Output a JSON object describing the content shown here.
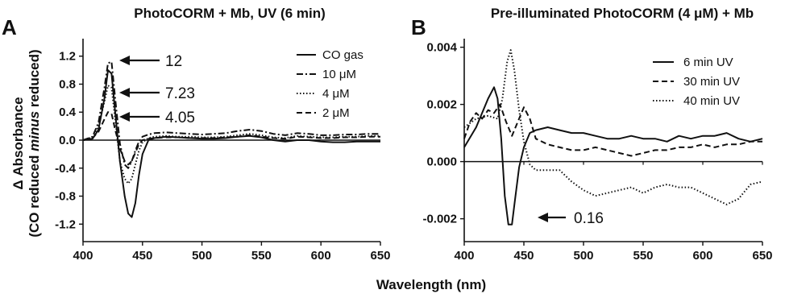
{
  "x_axis_title": "Wavelength (nm)",
  "chart_data": [
    {
      "panel": "A",
      "type": "line",
      "title": "PhotoCORM + Mb, UV (6 min)",
      "ylabel_line1": "Δ Absorbance",
      "ylabel_line2_pre": "(CO reduced ",
      "ylabel_line2_em": "minus",
      "ylabel_line2_post": " reduced)",
      "xlim": [
        400,
        650
      ],
      "ylim": [
        -1.45,
        1.45
      ],
      "xticks": [
        400,
        450,
        500,
        550,
        600,
        650
      ],
      "yticks": [
        1.2,
        0.8,
        0.4,
        0.0,
        -0.4,
        -0.8,
        -1.2
      ],
      "ytick_labels": [
        "1.2",
        "0.8",
        "0.4",
        "0.0",
        "-0.4",
        "-0.8",
        "-1.2"
      ],
      "legend_position": "top-right",
      "series": [
        {
          "name": "CO gas",
          "style": "solid",
          "x": [
            400,
            408,
            413,
            418,
            421,
            424,
            427,
            431,
            435,
            438,
            441,
            444,
            447,
            450,
            455,
            460,
            470,
            480,
            490,
            500,
            510,
            520,
            530,
            540,
            550,
            560,
            570,
            580,
            590,
            600,
            610,
            620,
            630,
            640,
            650
          ],
          "y": [
            0,
            0.02,
            0.15,
            0.6,
            1.0,
            0.95,
            0.4,
            -0.3,
            -0.8,
            -1.05,
            -1.1,
            -0.9,
            -0.5,
            -0.2,
            0.0,
            0.03,
            0.05,
            0.04,
            0.03,
            0.02,
            0.02,
            0.03,
            0.05,
            0.06,
            0.04,
            0.0,
            -0.02,
            0.0,
            0.0,
            -0.02,
            -0.03,
            -0.03,
            -0.02,
            -0.02,
            -0.02
          ]
        },
        {
          "name": "10 μM",
          "style": "dashdot",
          "x": [
            400,
            408,
            413,
            418,
            421,
            424,
            427,
            431,
            435,
            438,
            441,
            444,
            447,
            450,
            455,
            460,
            470,
            480,
            490,
            500,
            510,
            520,
            530,
            540,
            550,
            560,
            570,
            580,
            590,
            600,
            610,
            620,
            630,
            640,
            650
          ],
          "y": [
            0,
            0.05,
            0.25,
            0.75,
            1.1,
            1.12,
            0.6,
            -0.05,
            -0.35,
            -0.4,
            -0.3,
            -0.15,
            -0.02,
            0.05,
            0.08,
            0.1,
            0.11,
            0.1,
            0.09,
            0.08,
            0.09,
            0.1,
            0.13,
            0.15,
            0.13,
            0.09,
            0.07,
            0.1,
            0.09,
            0.07,
            0.07,
            0.08,
            0.08,
            0.09,
            0.09
          ]
        },
        {
          "name": "4 μM",
          "style": "dotted",
          "x": [
            400,
            408,
            413,
            418,
            421,
            424,
            427,
            431,
            435,
            438,
            441,
            444,
            447,
            450,
            455,
            460,
            470,
            480,
            490,
            500,
            510,
            520,
            530,
            540,
            550,
            560,
            570,
            580,
            590,
            600,
            610,
            620,
            630,
            640,
            650
          ],
          "y": [
            0,
            0.04,
            0.2,
            0.55,
            0.78,
            0.75,
            0.3,
            -0.3,
            -0.55,
            -0.62,
            -0.55,
            -0.35,
            -0.15,
            -0.03,
            0.03,
            0.05,
            0.06,
            0.05,
            0.05,
            0.04,
            0.04,
            0.05,
            0.07,
            0.09,
            0.07,
            0.04,
            0.03,
            0.06,
            0.05,
            0.04,
            0.04,
            0.05,
            0.05,
            0.06,
            0.06
          ]
        },
        {
          "name": "2 μM",
          "style": "dashed",
          "x": [
            400,
            408,
            413,
            418,
            421,
            424,
            427,
            431,
            435,
            438,
            441,
            444,
            447,
            450,
            455,
            460,
            470,
            480,
            490,
            500,
            510,
            520,
            530,
            540,
            550,
            560,
            570,
            580,
            590,
            600,
            610,
            620,
            630,
            640,
            650
          ],
          "y": [
            0,
            0.03,
            0.12,
            0.3,
            0.4,
            0.38,
            0.15,
            -0.12,
            -0.3,
            -0.35,
            -0.3,
            -0.18,
            -0.06,
            0.0,
            0.02,
            0.03,
            0.04,
            0.04,
            0.03,
            0.03,
            0.03,
            0.04,
            0.05,
            0.07,
            0.05,
            0.03,
            0.02,
            0.05,
            0.04,
            0.03,
            0.03,
            0.04,
            0.04,
            0.05,
            0.05
          ]
        }
      ],
      "annotations": [
        {
          "text": "12",
          "x": 423,
          "y": 1.12
        },
        {
          "text": "7.23",
          "x": 423,
          "y": 0.8
        },
        {
          "text": "4.05",
          "x": 423,
          "y": 0.4
        }
      ]
    },
    {
      "panel": "B",
      "type": "line",
      "title": "Pre-illuminated PhotoCORM (4 μM) + Mb",
      "xlim": [
        400,
        650
      ],
      "ylim": [
        -0.0028,
        0.0043
      ],
      "xticks": [
        400,
        450,
        500,
        550,
        600,
        650
      ],
      "yticks": [
        0.004,
        0.002,
        0.0,
        -0.002
      ],
      "ytick_labels": [
        "0.004",
        "0.002",
        "0.000",
        "-0.002"
      ],
      "legend_position": "top-right",
      "series": [
        {
          "name": "6 min UV",
          "style": "solid",
          "x": [
            400,
            410,
            420,
            425,
            428,
            431,
            434,
            437,
            440,
            443,
            446,
            450,
            455,
            460,
            470,
            480,
            490,
            500,
            510,
            520,
            530,
            540,
            550,
            560,
            570,
            580,
            590,
            600,
            610,
            620,
            630,
            640,
            650
          ],
          "y": [
            0.0005,
            0.0012,
            0.0022,
            0.0026,
            0.0022,
            0.0008,
            -0.0012,
            -0.0022,
            -0.0022,
            -0.0012,
            -0.0002,
            0.0005,
            0.001,
            0.0011,
            0.0012,
            0.0011,
            0.001,
            0.001,
            0.0009,
            0.0008,
            0.0008,
            0.0009,
            0.0008,
            0.0008,
            0.0007,
            0.0009,
            0.0008,
            0.0009,
            0.0009,
            0.001,
            0.0008,
            0.0007,
            0.0008
          ]
        },
        {
          "name": "30 min UV",
          "style": "dashed",
          "x": [
            400,
            405,
            410,
            415,
            420,
            425,
            430,
            435,
            440,
            445,
            450,
            455,
            460,
            470,
            480,
            490,
            500,
            510,
            520,
            530,
            540,
            550,
            560,
            570,
            580,
            590,
            600,
            610,
            620,
            630,
            640,
            650
          ],
          "y": [
            0.0008,
            0.0014,
            0.0017,
            0.0015,
            0.0018,
            0.0017,
            0.002,
            0.0014,
            0.0009,
            0.0014,
            0.0019,
            0.0015,
            0.0008,
            0.0006,
            0.0005,
            0.0004,
            0.0004,
            0.0005,
            0.0004,
            0.0003,
            0.0002,
            0.0003,
            0.0004,
            0.0004,
            0.0005,
            0.0005,
            0.0006,
            0.0005,
            0.0006,
            0.0006,
            0.0007,
            0.0007
          ]
        },
        {
          "name": "40 min UV",
          "style": "dotted",
          "x": [
            400,
            410,
            420,
            428,
            432,
            436,
            439,
            442,
            446,
            450,
            455,
            460,
            470,
            480,
            490,
            500,
            510,
            520,
            530,
            540,
            550,
            560,
            570,
            580,
            590,
            600,
            610,
            620,
            630,
            640,
            650
          ],
          "y": [
            0.0012,
            0.0015,
            0.0016,
            0.0015,
            0.0022,
            0.0035,
            0.0039,
            0.0032,
            0.0018,
            0.0007,
            -0.0001,
            -0.0003,
            -0.0003,
            -0.0003,
            -0.0007,
            -0.001,
            -0.0012,
            -0.0011,
            -0.001,
            -0.0009,
            -0.0011,
            -0.0009,
            -0.0008,
            -0.0009,
            -0.0009,
            -0.0011,
            -0.0013,
            -0.0015,
            -0.0013,
            -0.0008,
            -0.0007
          ]
        }
      ],
      "annotations": [
        {
          "text": "0.16",
          "x": 441,
          "y": -0.0021
        }
      ]
    }
  ]
}
